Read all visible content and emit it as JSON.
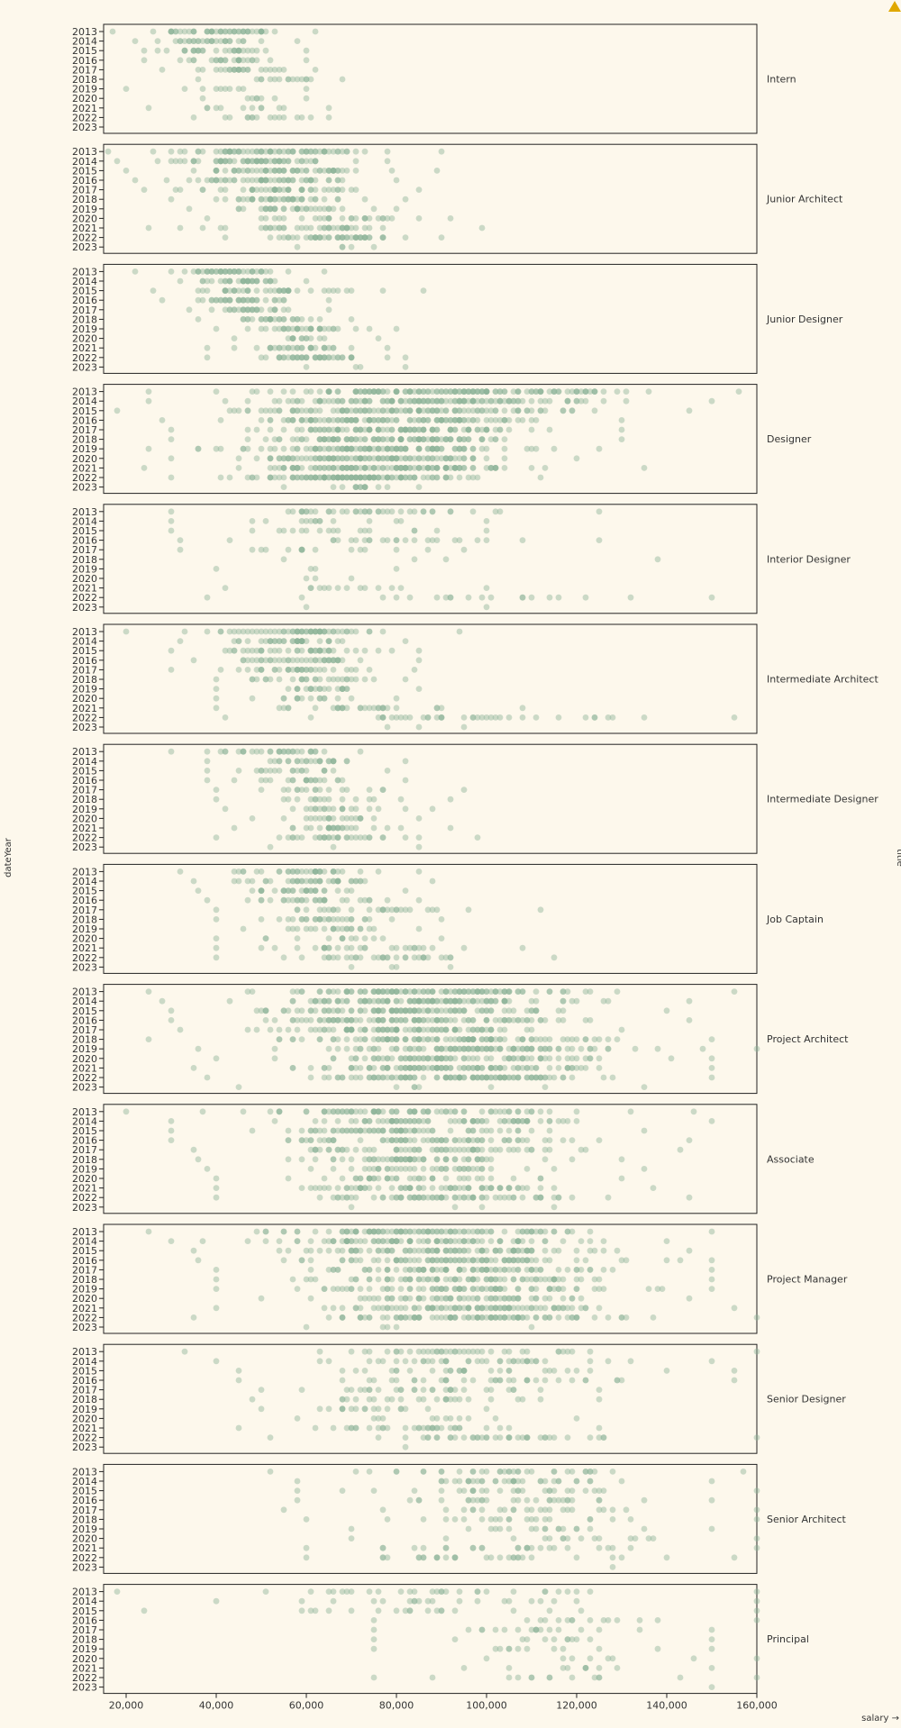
{
  "warning_icon": "warning-triangle-icon",
  "chart_data": {
    "type": "scatter",
    "facet_by": "title",
    "x_field": "salary",
    "y_field": "dateYear",
    "xlabel": "salary →",
    "ylabel": "dateYear",
    "facet_label": "title",
    "xlim": [
      15000,
      160000
    ],
    "xticks": [
      20000,
      40000,
      60000,
      80000,
      100000,
      120000,
      140000,
      160000
    ],
    "xtick_labels": [
      "20,000",
      "40,000",
      "60,000",
      "80,000",
      "100,000",
      "120,000",
      "140,000",
      "160,000"
    ],
    "years": [
      "2013",
      "2014",
      "2015",
      "2016",
      "2017",
      "2018",
      "2019",
      "2020",
      "2021",
      "2022",
      "2023"
    ],
    "grid": false,
    "dot_color": "#8fb49a",
    "background": "#fdf8ec",
    "facets": [
      {
        "title": "Intern",
        "ranges": [
          [
            17000,
            62000
          ],
          [
            22000,
            58000
          ],
          [
            24000,
            60000
          ],
          [
            24000,
            60000
          ],
          [
            28000,
            62000
          ],
          [
            36000,
            68000
          ],
          [
            20000,
            60000
          ],
          [
            37000,
            60000
          ],
          [
            25000,
            65000
          ],
          [
            35000,
            65000
          ],
          [
            0,
            0
          ]
        ],
        "counts": [
          50,
          30,
          30,
          26,
          26,
          16,
          10,
          8,
          12,
          16,
          0
        ]
      },
      {
        "title": "Junior Architect",
        "ranges": [
          [
            16000,
            90000
          ],
          [
            18000,
            78000
          ],
          [
            20000,
            89000
          ],
          [
            22000,
            80000
          ],
          [
            24000,
            85000
          ],
          [
            30000,
            82000
          ],
          [
            34000,
            80000
          ],
          [
            38000,
            92000
          ],
          [
            25000,
            99000
          ],
          [
            42000,
            90000
          ],
          [
            58000,
            75000
          ]
        ],
        "counts": [
          70,
          65,
          60,
          55,
          45,
          42,
          35,
          28,
          40,
          48,
          5
        ]
      },
      {
        "title": "Junior Designer",
        "ranges": [
          [
            22000,
            64000
          ],
          [
            32000,
            60000
          ],
          [
            26000,
            86000
          ],
          [
            28000,
            65000
          ],
          [
            34000,
            65000
          ],
          [
            36000,
            70000
          ],
          [
            40000,
            80000
          ],
          [
            44000,
            76000
          ],
          [
            38000,
            78000
          ],
          [
            38000,
            82000
          ],
          [
            60000,
            82000
          ]
        ],
        "counts": [
          45,
          35,
          42,
          35,
          28,
          28,
          34,
          14,
          30,
          44,
          4
        ]
      },
      {
        "title": "Designer",
        "ranges": [
          [
            25000,
            156000
          ],
          [
            25000,
            150000
          ],
          [
            18000,
            145000
          ],
          [
            28000,
            130000
          ],
          [
            30000,
            130000
          ],
          [
            30000,
            130000
          ],
          [
            25000,
            125000
          ],
          [
            30000,
            120000
          ],
          [
            24000,
            135000
          ],
          [
            30000,
            112000
          ],
          [
            55000,
            85000
          ]
        ],
        "counts": [
          140,
          120,
          110,
          110,
          100,
          100,
          110,
          100,
          120,
          130,
          15
        ]
      },
      {
        "title": "Interior Designer",
        "ranges": [
          [
            30000,
            125000
          ],
          [
            30000,
            100000
          ],
          [
            30000,
            100000
          ],
          [
            32000,
            125000
          ],
          [
            32000,
            95000
          ],
          [
            55000,
            138000
          ],
          [
            40000,
            80000
          ],
          [
            60000,
            70000
          ],
          [
            42000,
            100000
          ],
          [
            38000,
            150000
          ],
          [
            60000,
            100000
          ]
        ],
        "counts": [
          40,
          15,
          18,
          25,
          16,
          4,
          4,
          3,
          14,
          20,
          2
        ]
      },
      {
        "title": "Intermediate Architect",
        "ranges": [
          [
            20000,
            94000
          ],
          [
            32000,
            82000
          ],
          [
            30000,
            85000
          ],
          [
            35000,
            85000
          ],
          [
            30000,
            84000
          ],
          [
            40000,
            82000
          ],
          [
            40000,
            85000
          ],
          [
            40000,
            80000
          ],
          [
            40000,
            108000
          ],
          [
            42000,
            155000
          ],
          [
            78000,
            95000
          ]
        ],
        "counts": [
          60,
          40,
          40,
          40,
          35,
          28,
          22,
          16,
          30,
          38,
          3
        ]
      },
      {
        "title": "Intermediate Designer",
        "ranges": [
          [
            30000,
            72000
          ],
          [
            38000,
            82000
          ],
          [
            38000,
            78000
          ],
          [
            38000,
            82000
          ],
          [
            40000,
            95000
          ],
          [
            40000,
            92000
          ],
          [
            42000,
            88000
          ],
          [
            48000,
            85000
          ],
          [
            44000,
            92000
          ],
          [
            40000,
            98000
          ],
          [
            52000,
            85000
          ]
        ],
        "counts": [
          32,
          26,
          20,
          22,
          18,
          16,
          20,
          20,
          26,
          32,
          3
        ]
      },
      {
        "title": "Job Captain",
        "ranges": [
          [
            32000,
            85000
          ],
          [
            35000,
            88000
          ],
          [
            36000,
            82000
          ],
          [
            38000,
            85000
          ],
          [
            40000,
            112000
          ],
          [
            40000,
            90000
          ],
          [
            46000,
            85000
          ],
          [
            40000,
            90000
          ],
          [
            40000,
            108000
          ],
          [
            40000,
            115000
          ],
          [
            70000,
            92000
          ]
        ],
        "counts": [
          35,
          40,
          30,
          30,
          28,
          28,
          22,
          14,
          28,
          34,
          4
        ]
      },
      {
        "title": "Project Architect",
        "ranges": [
          [
            25000,
            155000
          ],
          [
            28000,
            145000
          ],
          [
            30000,
            140000
          ],
          [
            30000,
            145000
          ],
          [
            32000,
            130000
          ],
          [
            25000,
            150000
          ],
          [
            36000,
            160000
          ],
          [
            40000,
            150000
          ],
          [
            35000,
            150000
          ],
          [
            38000,
            150000
          ],
          [
            45000,
            135000
          ]
        ],
        "counts": [
          110,
          110,
          100,
          100,
          95,
          100,
          95,
          80,
          100,
          110,
          8
        ]
      },
      {
        "title": "Associate",
        "ranges": [
          [
            20000,
            146000
          ],
          [
            30000,
            150000
          ],
          [
            30000,
            135000
          ],
          [
            30000,
            145000
          ],
          [
            35000,
            143000
          ],
          [
            36000,
            130000
          ],
          [
            38000,
            135000
          ],
          [
            40000,
            130000
          ],
          [
            40000,
            137000
          ],
          [
            40000,
            145000
          ],
          [
            70000,
            115000
          ]
        ],
        "counts": [
          80,
          75,
          70,
          70,
          60,
          60,
          40,
          40,
          65,
          70,
          4
        ]
      },
      {
        "title": "Project Manager",
        "ranges": [
          [
            25000,
            150000
          ],
          [
            30000,
            140000
          ],
          [
            35000,
            145000
          ],
          [
            36000,
            150000
          ],
          [
            40000,
            150000
          ],
          [
            40000,
            150000
          ],
          [
            40000,
            150000
          ],
          [
            50000,
            145000
          ],
          [
            40000,
            155000
          ],
          [
            35000,
            160000
          ],
          [
            60000,
            110000
          ]
        ],
        "counts": [
          100,
          90,
          90,
          85,
          80,
          75,
          75,
          60,
          85,
          95,
          5
        ]
      },
      {
        "title": "Senior Designer",
        "ranges": [
          [
            33000,
            160000
          ],
          [
            40000,
            150000
          ],
          [
            45000,
            155000
          ],
          [
            45000,
            155000
          ],
          [
            50000,
            125000
          ],
          [
            48000,
            125000
          ],
          [
            50000,
            100000
          ],
          [
            58000,
            120000
          ],
          [
            45000,
            125000
          ],
          [
            52000,
            160000
          ],
          [
            82000,
            82000
          ]
        ],
        "counts": [
          40,
          40,
          30,
          35,
          30,
          25,
          18,
          12,
          35,
          40,
          1
        ]
      },
      {
        "title": "Senior Architect",
        "ranges": [
          [
            52000,
            157000
          ],
          [
            58000,
            150000
          ],
          [
            58000,
            160000
          ],
          [
            58000,
            150000
          ],
          [
            55000,
            160000
          ],
          [
            60000,
            160000
          ],
          [
            70000,
            150000
          ],
          [
            70000,
            160000
          ],
          [
            60000,
            160000
          ],
          [
            60000,
            155000
          ],
          [
            128000,
            128000
          ]
        ],
        "counts": [
          35,
          35,
          28,
          28,
          24,
          22,
          18,
          16,
          26,
          30,
          1
        ]
      },
      {
        "title": "Principal",
        "ranges": [
          [
            18000,
            160000
          ],
          [
            40000,
            160000
          ],
          [
            24000,
            160000
          ],
          [
            75000,
            160000
          ],
          [
            75000,
            150000
          ],
          [
            75000,
            150000
          ],
          [
            75000,
            150000
          ],
          [
            100000,
            160000
          ],
          [
            95000,
            150000
          ],
          [
            75000,
            160000
          ],
          [
            150000,
            150000
          ]
        ],
        "counts": [
          30,
          20,
          20,
          15,
          18,
          12,
          12,
          8,
          10,
          14,
          1
        ]
      }
    ]
  }
}
